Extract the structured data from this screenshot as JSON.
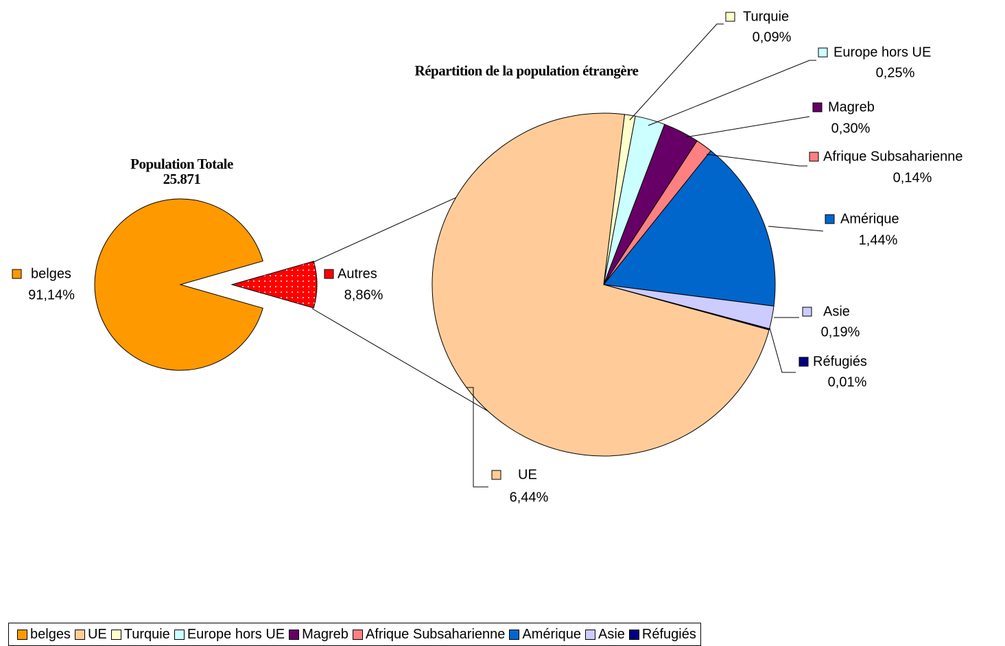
{
  "chart_data": [
    {
      "type": "pie",
      "title": "Population Totale",
      "subtitle": "25.871",
      "categories": [
        "belges",
        "Autres"
      ],
      "values": [
        91.14,
        8.86
      ],
      "value_labels": [
        "91,14%",
        "8,86%"
      ],
      "colors": [
        "#ff9900",
        "#ff0000"
      ]
    },
    {
      "type": "pie",
      "title": "Répartition de la population étrangère",
      "categories": [
        "UE",
        "Turquie",
        "Europe hors UE",
        "Magreb",
        "Afrique Subsaharienne",
        "Amérique",
        "Asie",
        "Réfugiés"
      ],
      "values": [
        6.44,
        0.09,
        0.25,
        0.3,
        0.14,
        1.44,
        0.19,
        0.01
      ],
      "value_labels": [
        "6,44%",
        "0,09%",
        "0,25%",
        "0,30%",
        "0,14%",
        "1,44%",
        "0,19%",
        "0,01%"
      ],
      "colors": [
        "#ffcc99",
        "#ffffcc",
        "#ccffff",
        "#660066",
        "#ff8080",
        "#0066cc",
        "#ccccff",
        "#000080"
      ],
      "legend": "bottom"
    }
  ]
}
